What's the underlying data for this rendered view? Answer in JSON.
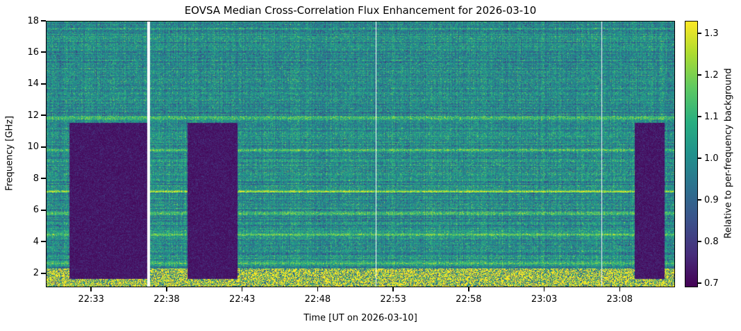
{
  "chart_data": {
    "type": "heatmap",
    "title": "EOVSA Median Cross-Correlation Flux Enhancement for 2026-03-10",
    "xlabel": "Time [UT on 2026-03-10]",
    "ylabel": "Frequency [GHz]",
    "x_ticks": [
      "22:33",
      "22:38",
      "22:43",
      "22:48",
      "22:53",
      "22:58",
      "23:03",
      "23:08"
    ],
    "x_range": [
      "22:30",
      "23:11:40"
    ],
    "y_ticks": [
      2,
      4,
      6,
      8,
      10,
      12,
      14,
      16,
      18
    ],
    "ylim": [
      1.1,
      18
    ],
    "colorbar": {
      "label": "Relative to per-frequency background",
      "ticks": [
        0.7,
        0.8,
        0.9,
        1.0,
        1.1,
        1.2,
        1.3
      ],
      "range": [
        0.69,
        1.33
      ],
      "colormap": "viridis"
    },
    "low_enhancement_intervals": [
      {
        "start": "22:31:30",
        "end": "22:36:40",
        "value": 0.7
      },
      {
        "start": "22:39:20",
        "end": "22:42:40",
        "value": 0.7
      },
      {
        "start": "23:09:00",
        "end": "23:11:00",
        "value": 0.7
      }
    ],
    "data_gaps": [
      "22:36:40",
      "22:51:50",
      "23:06:50"
    ],
    "enhanced_bands_ghz": [
      1.8,
      2.6,
      4.4,
      5.8,
      7.2,
      9.8,
      11.9
    ],
    "background_value": 1.0
  }
}
